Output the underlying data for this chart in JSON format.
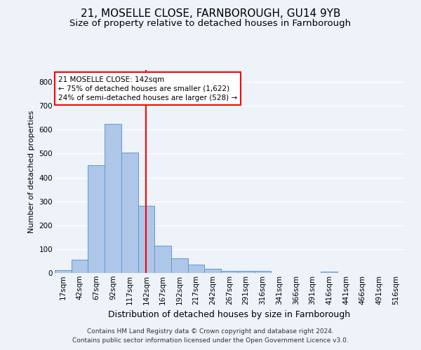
{
  "title_line1": "21, MOSELLE CLOSE, FARNBOROUGH, GU14 9YB",
  "title_line2": "Size of property relative to detached houses in Farnborough",
  "xlabel": "Distribution of detached houses by size in Farnborough",
  "ylabel": "Number of detached properties",
  "footer_line1": "Contains HM Land Registry data © Crown copyright and database right 2024.",
  "footer_line2": "Contains public sector information licensed under the Open Government Licence v3.0.",
  "bar_labels": [
    "17sqm",
    "42sqm",
    "67sqm",
    "92sqm",
    "117sqm",
    "142sqm",
    "167sqm",
    "192sqm",
    "217sqm",
    "242sqm",
    "267sqm",
    "291sqm",
    "316sqm",
    "341sqm",
    "366sqm",
    "391sqm",
    "416sqm",
    "441sqm",
    "466sqm",
    "491sqm",
    "516sqm"
  ],
  "bar_values": [
    12,
    55,
    450,
    625,
    505,
    280,
    115,
    62,
    35,
    17,
    10,
    8,
    8,
    0,
    0,
    0,
    7,
    0,
    0,
    0,
    0
  ],
  "bar_color": "#aec6e8",
  "bar_edge_color": "#5b9bd5",
  "vline_x": 5,
  "vline_color": "red",
  "annotation_title": "21 MOSELLE CLOSE: 142sqm",
  "annotation_line1": "← 75% of detached houses are smaller (1,622)",
  "annotation_line2": "24% of semi-detached houses are larger (528) →",
  "annotation_box_color": "white",
  "annotation_box_edge": "red",
  "ylim": [
    0,
    850
  ],
  "yticks": [
    0,
    100,
    200,
    300,
    400,
    500,
    600,
    700,
    800
  ],
  "background_color": "#eef2f9",
  "grid_color": "#ffffff",
  "title1_fontsize": 11,
  "title2_fontsize": 9.5,
  "ylabel_fontsize": 8,
  "xlabel_fontsize": 9,
  "tick_fontsize": 7.5,
  "footer_fontsize": 6.5,
  "annotation_fontsize": 7.5
}
